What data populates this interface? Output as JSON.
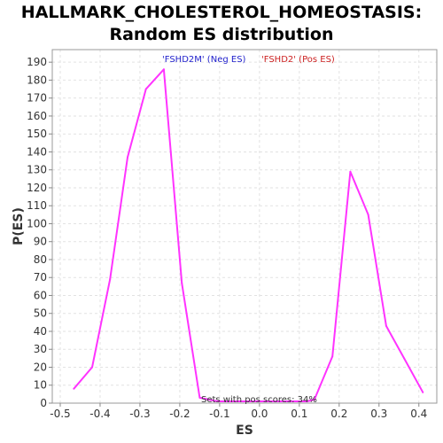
{
  "chart_data": {
    "type": "line",
    "title_line1": "HALLMARK_CHOLESTEROL_HOMEOSTASIS:",
    "title_line2": "Random ES distribution",
    "xlabel": "ES",
    "ylabel": "P(ES)",
    "xlim": [
      -0.52,
      0.445
    ],
    "ylim": [
      0,
      197
    ],
    "xticks": [
      -0.5,
      -0.4,
      -0.3,
      -0.2,
      -0.1,
      0.0,
      0.1,
      0.2,
      0.3,
      0.4
    ],
    "xtick_labels": [
      "-0.5",
      "-0.4",
      "-0.3",
      "-0.2",
      "-0.1",
      "0.0",
      "0.1",
      "0.2",
      "0.3",
      "0.4"
    ],
    "yticks": [
      0,
      10,
      20,
      30,
      40,
      50,
      60,
      70,
      80,
      90,
      100,
      110,
      120,
      130,
      140,
      150,
      160,
      170,
      180,
      190
    ],
    "grid": true,
    "series": [
      {
        "color": "#ff33ff",
        "x": [
          -0.466,
          -0.42,
          -0.375,
          -0.331,
          -0.285,
          -0.24,
          -0.195,
          -0.15,
          -0.105,
          -0.06,
          -0.015,
          0.03,
          0.075,
          0.12,
          0.138,
          0.183,
          0.228,
          0.273,
          0.318,
          0.363,
          0.41
        ],
        "y": [
          8,
          20,
          69,
          137,
          175,
          186,
          67,
          3,
          1,
          1,
          1,
          1,
          1,
          1,
          2,
          26,
          129,
          105,
          43,
          25,
          6
        ]
      }
    ],
    "legend": [
      {
        "label": "'FSHD2M' (Neg ES)",
        "color": "#2222cc"
      },
      {
        "label": "'FSHD2' (Pos ES)",
        "color": "#cc2222"
      }
    ],
    "legend_placement": "top-center",
    "annotation": "Sets with pos scores: 34%"
  }
}
